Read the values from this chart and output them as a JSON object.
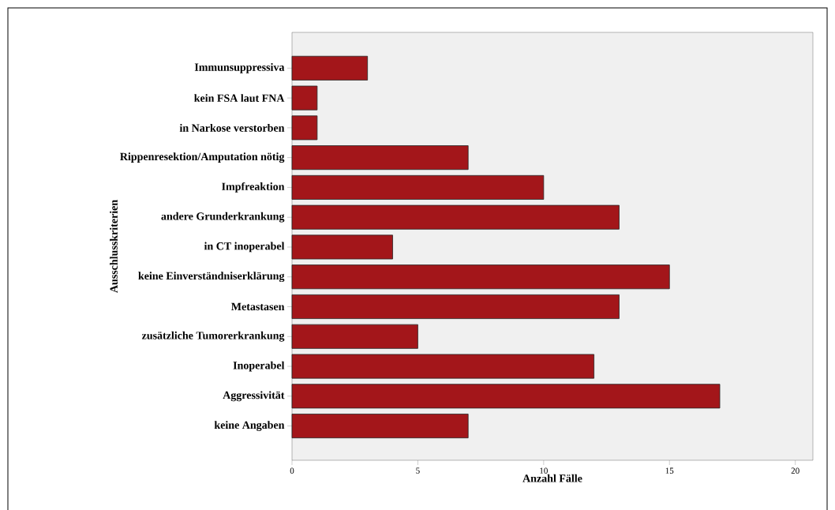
{
  "chart_data": {
    "type": "bar",
    "orientation": "horizontal",
    "xlabel": "Anzahl Fälle",
    "ylabel": "Ausschlusskriterien",
    "categories": [
      "Immunsuppressiva",
      "kein FSA laut FNA",
      "in Narkose verstorben",
      "Rippenresektion/Amputation nötig",
      "Impfreaktion",
      "andere Grunderkrankung",
      "in CT inoperabel",
      "keine Einverständniserklärung",
      "Metastasen",
      "zusätzliche Tumorerkrankung",
      "Inoperabel",
      "Aggressivität",
      "keine Angaben"
    ],
    "values": [
      3,
      1,
      1,
      7,
      10,
      13,
      4,
      15,
      13,
      5,
      12,
      17,
      7
    ],
    "color": "#a3161a",
    "xlim": [
      0,
      20.7
    ],
    "xticks": [
      0,
      5,
      10,
      15,
      20
    ]
  }
}
